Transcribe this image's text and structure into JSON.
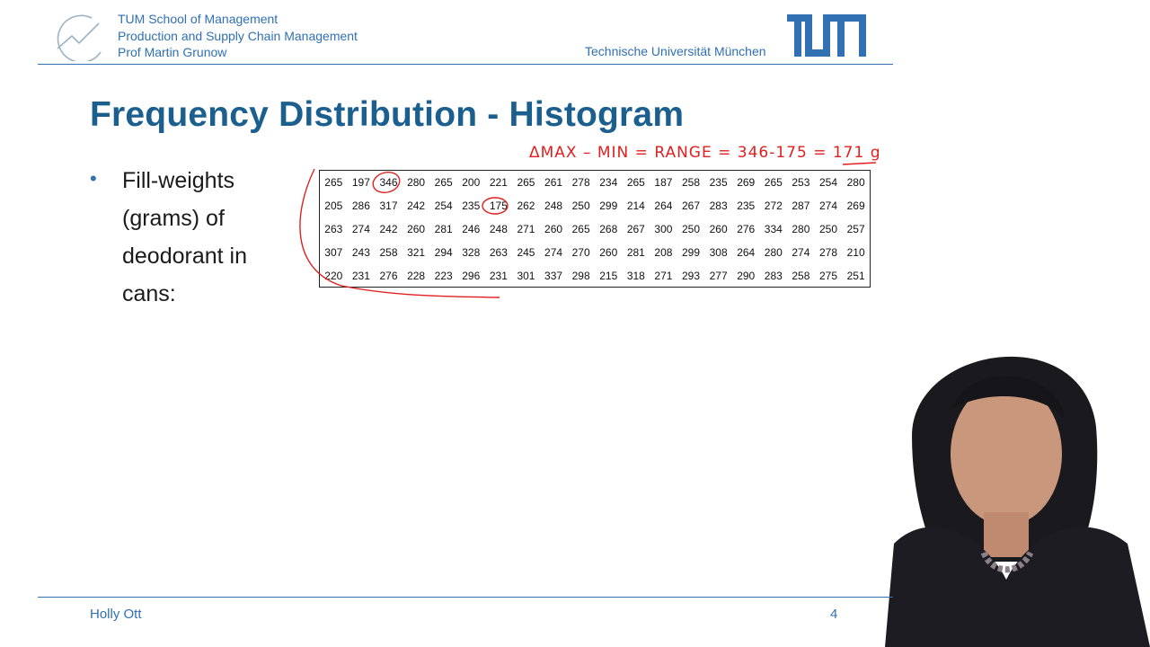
{
  "header": {
    "lines": [
      "TUM School of Management",
      "Production and Supply Chain Management",
      "Prof Martin Grunow"
    ],
    "university": "Technische Universität München"
  },
  "title": "Frequency Distribution - Histogram",
  "bullet": "Fill-weights (grams) of deodorant in cans:",
  "table": [
    [
      "265",
      "197",
      "346",
      "280",
      "265",
      "200",
      "221",
      "265",
      "261",
      "278",
      "234",
      "265",
      "187",
      "258",
      "235",
      "269",
      "265",
      "253",
      "254",
      "280"
    ],
    [
      "205",
      "286",
      "317",
      "242",
      "254",
      "235",
      "175",
      "262",
      "248",
      "250",
      "299",
      "214",
      "264",
      "267",
      "283",
      "235",
      "272",
      "287",
      "274",
      "269"
    ],
    [
      "263",
      "274",
      "242",
      "260",
      "281",
      "246",
      "248",
      "271",
      "260",
      "265",
      "268",
      "267",
      "300",
      "250",
      "260",
      "276",
      "334",
      "280",
      "250",
      "257"
    ],
    [
      "307",
      "243",
      "258",
      "321",
      "294",
      "328",
      "263",
      "245",
      "274",
      "270",
      "260",
      "281",
      "208",
      "299",
      "308",
      "264",
      "280",
      "274",
      "278",
      "210"
    ],
    [
      "220",
      "231",
      "276",
      "228",
      "223",
      "296",
      "231",
      "301",
      "337",
      "298",
      "215",
      "318",
      "271",
      "293",
      "277",
      "290",
      "283",
      "258",
      "275",
      "251"
    ]
  ],
  "annotation": "ΔMAX – MIN = RANGE = 346-175 = 171 g",
  "footer": {
    "name": "Holly Ott",
    "page": "4"
  },
  "colors": {
    "tum_blue": "#3070b3",
    "title_blue": "#1b5f8f",
    "annotation_red": "#e02020"
  }
}
